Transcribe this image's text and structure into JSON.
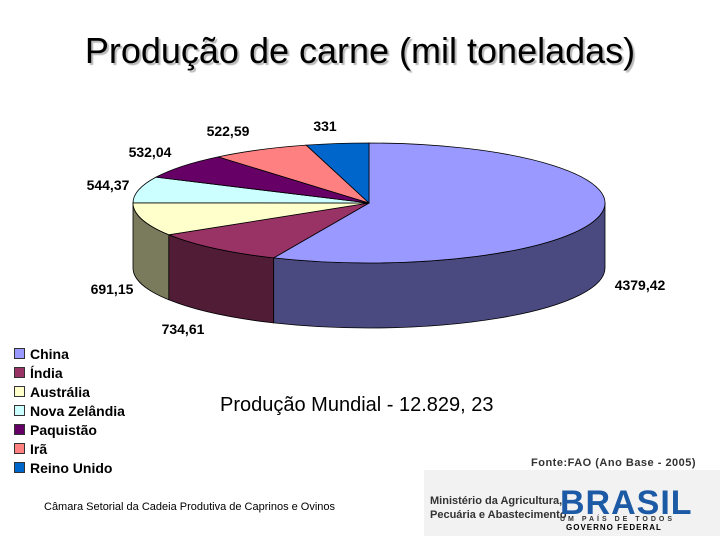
{
  "title": "Produção de carne (mil toneladas)",
  "chart_data": {
    "type": "pie",
    "style": "3d-exploded",
    "categories": [
      "China",
      "Índia",
      "Austrália",
      "Nova Zelândia",
      "Paquistão",
      "Irã",
      "Reino Unido"
    ],
    "values": [
      4379.42,
      734.61,
      691.15,
      544.37,
      532.04,
      522.59,
      331
    ],
    "data_labels": [
      "4379,42",
      "734,61",
      "691,15",
      "544,37",
      "532,04",
      "522,59",
      "331"
    ],
    "colors": [
      "#9999ff",
      "#993366",
      "#ffffcc",
      "#ccffff",
      "#660066",
      "#ff8080",
      "#0066cc"
    ],
    "side_colors": [
      "#4a4a80",
      "#501c36",
      "#7a7a5c",
      "#6a8080",
      "#340034",
      "#804040",
      "#003366"
    ],
    "legend": "left"
  },
  "total_label": "Produção Mundial - 12.829, 23",
  "source": "Fonte:FAO (Ano Base - 2005)",
  "footer": "Câmara Setorial da Cadeia Produtiva de Caprinos e Ovinos",
  "logo": {
    "ministry_line1": "Ministério da Agricultura,",
    "ministry_line2": "Pecuária e Abastecimento",
    "brand": "BRASIL",
    "brand_sub": "UM PAÍS DE TODOS",
    "government": "GOVERNO FEDERAL"
  }
}
